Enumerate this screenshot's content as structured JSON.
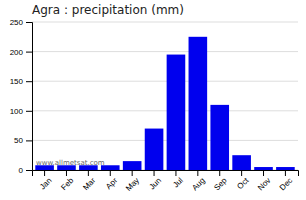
{
  "chart_data": {
    "type": "bar",
    "title": "Agra : precipitation (mm)",
    "categories": [
      "Jan",
      "Feb",
      "Mar",
      "Apr",
      "May",
      "Jun",
      "Jul",
      "Aug",
      "Sep",
      "Oct",
      "Nov",
      "Dec"
    ],
    "values": [
      8,
      8,
      8,
      8,
      15,
      70,
      195,
      225,
      110,
      25,
      5,
      5
    ],
    "color": "#0000EE",
    "ylim": [
      0,
      250
    ],
    "yticks": [
      0,
      50,
      100,
      150,
      200,
      250
    ],
    "grid": true,
    "annotations": [
      "www.allmetsat.com"
    ]
  }
}
